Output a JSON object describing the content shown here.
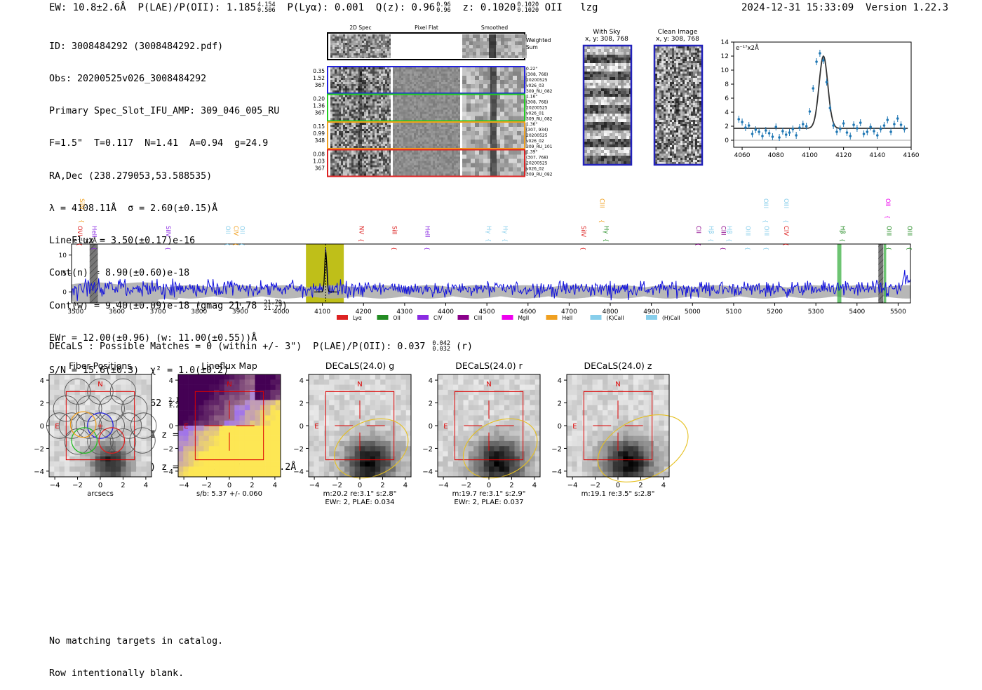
{
  "header": {
    "ew": "EW: 10.8±2.6Å",
    "plae_label": "P(LAE)/P(OII): 1.185",
    "plae_hi": "4.154",
    "plae_lo": "0.506",
    "plya": "P(Lyα): 0.001",
    "qz_label": "Q(z): 0.96",
    "qz_hi": "0.96",
    "qz_lo": "0.96",
    "z_label": "z: 0.1020",
    "z_hi": "0.1020",
    "z_lo": "0.1020",
    "line": "OII",
    "flag": "lzg",
    "datetime": "2024-12-31 15:33:09",
    "version": "Version 1.22.3"
  },
  "info": {
    "id": "ID: 3008484292 (3008484292.pdf)",
    "obs": "Obs: 20200525v026_3008484292",
    "primary": "Primary Spec_Slot_IFU_AMP: 309_046_005_RU",
    "params": "F=1.5\"  T=0.117  N=1.41  A=0.94  g=24.9",
    "radec": "RA,Dec (238.279053,53.588535)",
    "lambda": "λ = 4108.11Å  σ = 2.60(±0.15)Å",
    "lineflux": "LineFlux = 3.50(±0.17)e-16",
    "contn": "Cont(n) = 8.90(±0.60)e-18",
    "contw": "Cont(w) = 9.40(±0.09)e-18 (gmag 21.78",
    "contw_hi": "21.79",
    "contw_lo": "21.77",
    "contw_end": ")",
    "ewr": "EWr = 12.00(±0.96) (w: 11.00(±0.55))Å",
    "sn": "S/N = 15.6(±0.3)  χ² = 1.0(±0.2)",
    "plae": "P(LAE)/P(OII): 1.562",
    "plae_hi": "2.174",
    "plae_lo": "1.202",
    "plae_w": "(w: 1.192",
    "plae_w_hi": "1.263",
    "plae_w_lo": "1.13",
    "plae_w_end": ")",
    "lya": "LyA z = 2.3793  OII z = 0.1020",
    "q": "*Q(0.96) OII (3728) z = 0.1020  EW r = 33.2Å"
  },
  "cutouts": {
    "col_labels": [
      "2D Spec",
      "Pixel Flat",
      "Smoothed"
    ],
    "weighted_label": [
      "Weighted",
      "Sum"
    ],
    "rows": [
      {
        "left": [
          "0.35",
          "1.52",
          "367"
        ],
        "right": [
          "0.22\"",
          "(308, 768)",
          "20200525",
          "v026_03",
          "309_RU_082"
        ],
        "color": "#2222dd"
      },
      {
        "left": [
          "0.20",
          "1.36",
          "367"
        ],
        "right": [
          "1.16\"",
          "(308, 768)",
          "20200525",
          "v026_01",
          "309_RU_082"
        ],
        "color": "#22cc22"
      },
      {
        "left": [
          "0.15",
          "0.99",
          "348"
        ],
        "right": [
          "1.36\"",
          "(307, 934)",
          "20200525",
          "v026_02",
          "309_RU_101"
        ],
        "color": "#f0a020"
      },
      {
        "left": [
          "0.08",
          "1.03",
          "367"
        ],
        "right": [
          "1.39\"",
          "(307, 768)",
          "20200525",
          "v026_02",
          "309_RU_082"
        ],
        "color": "#dd2222"
      }
    ],
    "sky_title": [
      "With Sky",
      "x, y: 308, 768"
    ],
    "clean_title": [
      "Clean Image",
      "x, y: 308, 768"
    ]
  },
  "zoom_chart": {
    "type": "scatter",
    "ylabel": "e⁻¹⁷x2Å",
    "xlim": [
      4055,
      4160
    ],
    "ylim": [
      -1,
      14
    ],
    "x_ticks": [
      "4060",
      "4080",
      "4100",
      "4120",
      "4140",
      "4160"
    ],
    "y_ticks": [
      "0",
      "2",
      "4",
      "6",
      "8",
      "10",
      "12",
      "14"
    ],
    "x": [
      4058,
      4060,
      4062,
      4064,
      4066,
      4068,
      4070,
      4072,
      4074,
      4076,
      4078,
      4080,
      4082,
      4084,
      4086,
      4088,
      4090,
      4092,
      4094,
      4096,
      4098,
      4100,
      4102,
      4104,
      4106,
      4108,
      4110,
      4112,
      4114,
      4116,
      4118,
      4120,
      4122,
      4124,
      4126,
      4128,
      4130,
      4132,
      4134,
      4136,
      4138,
      4140,
      4142,
      4144,
      4146,
      4148,
      4150,
      4152,
      4154,
      4156
    ],
    "y": [
      3.0,
      2.6,
      1.8,
      2.1,
      0.9,
      1.5,
      1.2,
      0.6,
      1.4,
      1.0,
      0.5,
      1.9,
      0.4,
      1.3,
      0.8,
      1.1,
      1.6,
      0.7,
      1.8,
      2.3,
      2.0,
      4.1,
      7.4,
      11.2,
      12.4,
      11.4,
      8.3,
      4.6,
      2.1,
      1.2,
      1.6,
      2.4,
      1.1,
      0.6,
      2.2,
      1.7,
      2.5,
      0.9,
      1.2,
      1.9,
      1.3,
      0.7,
      1.6,
      2.1,
      2.9,
      1.2,
      2.3,
      3.1,
      2.2,
      1.6
    ],
    "fit_peak": 12.0,
    "fit_center": 4108.1,
    "fit_sigma": 2.6,
    "fit_continuum": 1.7
  },
  "spectrum_chart": {
    "type": "line",
    "ylabel": "e⁻¹⁷x2Å",
    "xlim": [
      3490,
      5530
    ],
    "ylim": [
      -3,
      13
    ],
    "x_ticks": [
      "3500",
      "3600",
      "3700",
      "3800",
      "3900",
      "4000",
      "4100",
      "4200",
      "4300",
      "4400",
      "4500",
      "4600",
      "4700",
      "4800",
      "4900",
      "5000",
      "5100",
      "5200",
      "5300",
      "5400",
      "5500"
    ],
    "y_ticks": [
      "0",
      "5",
      "10"
    ],
    "emission_center": 4108.1,
    "highlight_band": [
      4060,
      4152
    ],
    "gray_bands": [
      [
        3534,
        3554
      ],
      [
        5452,
        5464
      ]
    ],
    "green_bands": [
      [
        5352,
        5362
      ],
      [
        5465,
        5471
      ]
    ],
    "line_labels": [
      {
        "name": "OVI",
        "wave": 3500,
        "color": "#dd2222",
        "row": "low"
      },
      {
        "name": "SiIV",
        "wave": 3505,
        "color": "#f0a020",
        "row": "high"
      },
      {
        "name": "HeII",
        "wave": 3535,
        "color": "#8a2be2",
        "row": "low"
      },
      {
        "name": "SiIV",
        "wave": 3715,
        "color": "#8a2be2",
        "row": "low"
      },
      {
        "name": "OII",
        "wave": 3860,
        "color": "#87ceeb",
        "row": "low"
      },
      {
        "name": "CIV",
        "wave": 3880,
        "color": "#f0a020",
        "row": "low"
      },
      {
        "name": "OII",
        "wave": 3895,
        "color": "#87ceeb",
        "row": "low"
      },
      {
        "name": "NV",
        "wave": 4185,
        "color": "#dd2222",
        "row": "low"
      },
      {
        "name": "SiII",
        "wave": 4265,
        "color": "#dd2222",
        "row": "low"
      },
      {
        "name": "HeII",
        "wave": 4345,
        "color": "#8a2be2",
        "row": "low"
      },
      {
        "name": "Hγ",
        "wave": 4495,
        "color": "#87ceeb",
        "row": "low"
      },
      {
        "name": "Hγ",
        "wave": 4535,
        "color": "#87ceeb",
        "row": "low"
      },
      {
        "name": "SiIV",
        "wave": 4725,
        "color": "#dd2222",
        "row": "low"
      },
      {
        "name": "CIII",
        "wave": 4770,
        "color": "#f0a020",
        "row": "high"
      },
      {
        "name": "Hγ",
        "wave": 4780,
        "color": "#228b22",
        "row": "low"
      },
      {
        "name": "CII",
        "wave": 5005,
        "color": "#8a008a",
        "row": "low"
      },
      {
        "name": "Hβ",
        "wave": 5035,
        "color": "#87ceeb",
        "row": "low"
      },
      {
        "name": "CIII",
        "wave": 5065,
        "color": "#8a008a",
        "row": "low"
      },
      {
        "name": "Hβ",
        "wave": 5080,
        "color": "#87ceeb",
        "row": "low"
      },
      {
        "name": "OIII",
        "wave": 5125,
        "color": "#87ceeb",
        "row": "low"
      },
      {
        "name": "OIII",
        "wave": 5170,
        "color": "#87ceeb",
        "row": "low"
      },
      {
        "name": "OIII",
        "wave": 5168,
        "color": "#87ceeb",
        "row": "high"
      },
      {
        "name": "OIII",
        "wave": 5218,
        "color": "#87ceeb",
        "row": "high"
      },
      {
        "name": "CIV",
        "wave": 5218,
        "color": "#dd2222",
        "row": "low"
      },
      {
        "name": "Hβ",
        "wave": 5355,
        "color": "#228b22",
        "row": "low"
      },
      {
        "name": "OII",
        "wave": 5465,
        "color": "#ee00ee",
        "row": "high"
      },
      {
        "name": "OIII",
        "wave": 5468,
        "color": "#228b22",
        "row": "low"
      },
      {
        "name": "OIII",
        "wave": 5518,
        "color": "#228b22",
        "row": "low"
      }
    ],
    "legend": [
      {
        "label": "Lyα",
        "color": "#dd2222"
      },
      {
        "label": "OII",
        "color": "#228b22"
      },
      {
        "label": "CIV",
        "color": "#8a2be2"
      },
      {
        "label": "CIII",
        "color": "#8a008a"
      },
      {
        "label": "MgII",
        "color": "#ee00ee"
      },
      {
        "label": "HeII",
        "color": "#f0a020"
      },
      {
        "label": "(K)CaII",
        "color": "#87ceeb"
      },
      {
        "label": "(H)CaII",
        "color": "#87ceeb"
      }
    ]
  },
  "decals": {
    "summary": "DECaLS : Possible Matches = 0 (within +/- 3\")  P(LAE)/P(OII): 0.037",
    "summary_hi": "0.042",
    "summary_lo": "0.032",
    "summary_end": "(r)",
    "panels": [
      {
        "title": "Fiber Positions",
        "caption1": "arcsecs",
        "caption2": ""
      },
      {
        "title": "Lineflux Map",
        "caption1": "s/b: 5.37 +/- 0.060",
        "caption2": ""
      },
      {
        "title": "DECaLS(24.0) g",
        "caption1": "m:20.2  re:3.1\"  s:2.8\"",
        "caption2": "EWr: 2, PLAE: 0.034"
      },
      {
        "title": "DECaLS(24.0) r",
        "caption1": "m:19.7  re:3.1\"  s:2.9\"",
        "caption2": "EWr: 2, PLAE: 0.037"
      },
      {
        "title": "DECaLS(24.0) z",
        "caption1": "m:19.1  re:3.5\"  s:2.8\"",
        "caption2": ""
      }
    ],
    "tick_labels": [
      "−4",
      "−2",
      "0",
      "2",
      "4"
    ],
    "north": "N",
    "east": "E"
  },
  "footer": {
    "line1": "No matching targets in catalog.",
    "line2": "Row intentionally blank."
  }
}
